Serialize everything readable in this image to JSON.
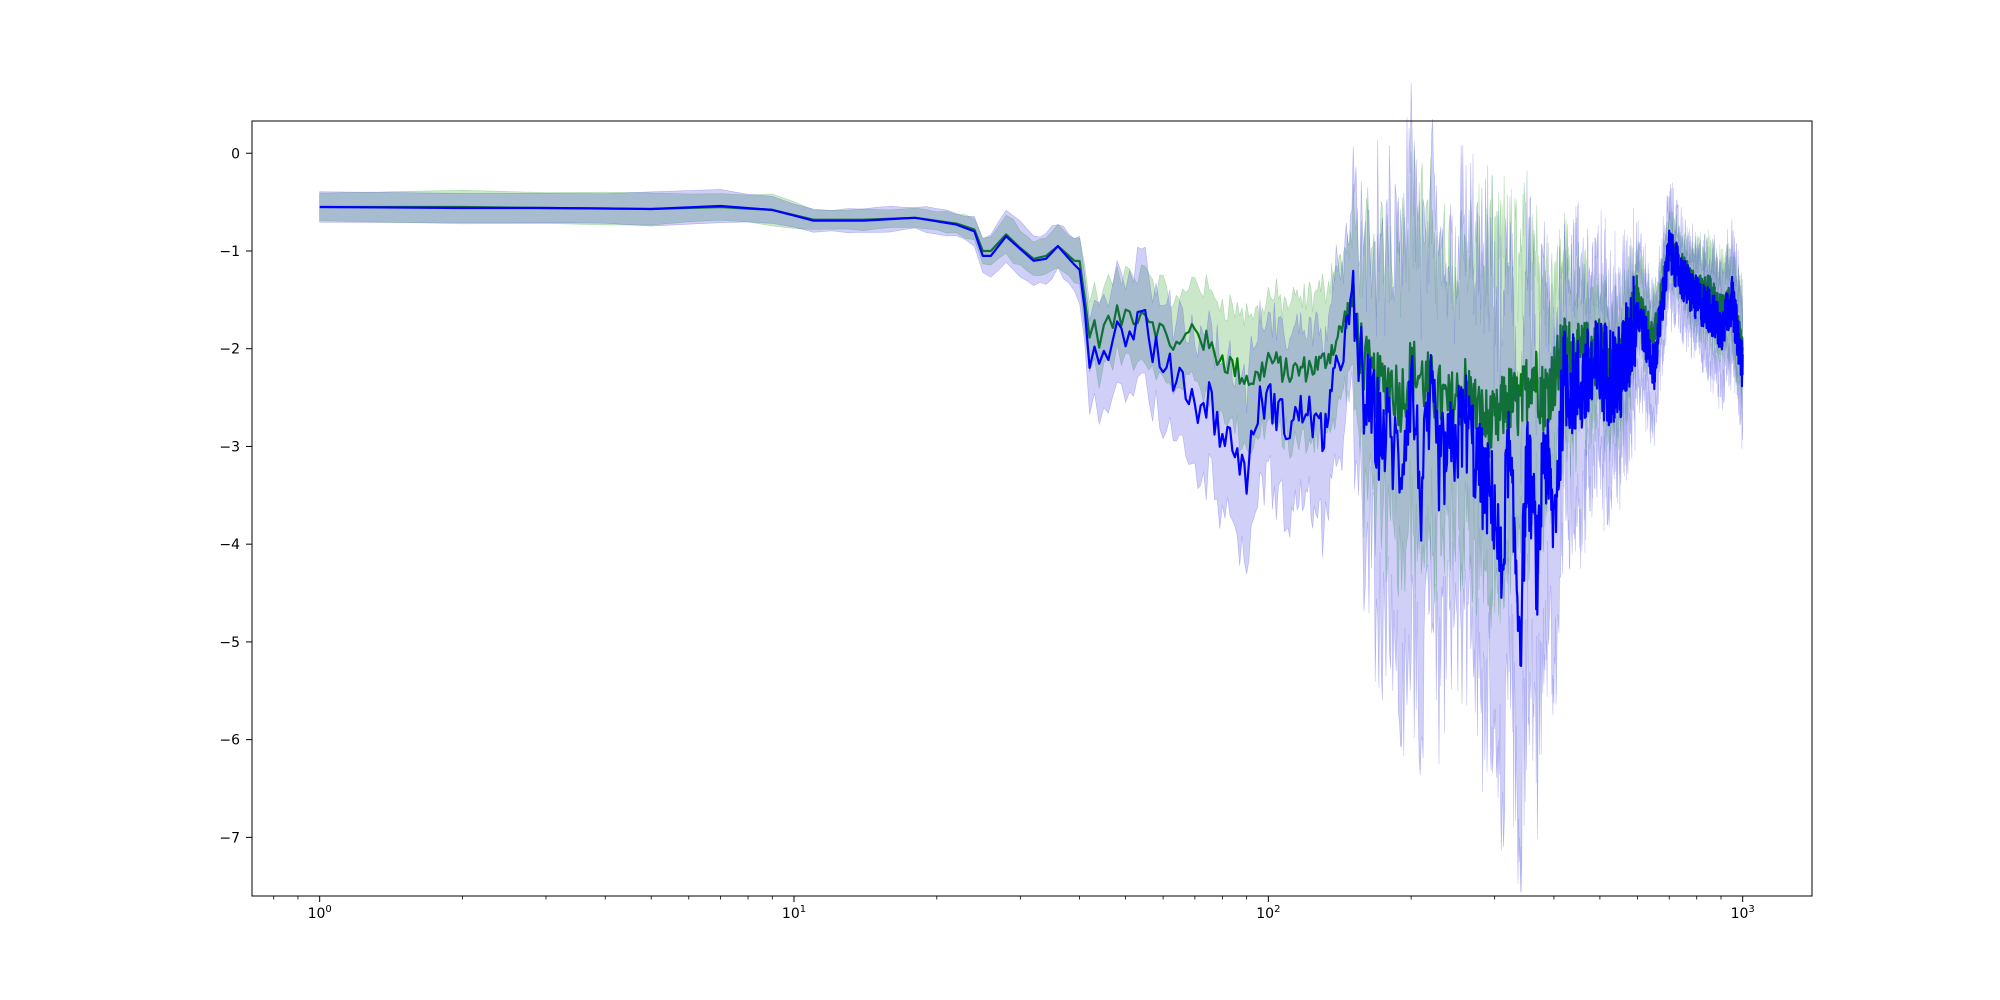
{
  "chart_data": {
    "type": "line",
    "title": "",
    "xlabel": "",
    "ylabel": "",
    "x_scale": "log",
    "xlim": [
      0.72,
      1400
    ],
    "ylim": [
      -7.6,
      0.33
    ],
    "grid": false,
    "legend": "none",
    "x_tick_labels": [
      {
        "value": 1,
        "base": "10",
        "exp": "0"
      },
      {
        "value": 10,
        "base": "10",
        "exp": "1"
      },
      {
        "value": 100,
        "base": "10",
        "exp": "2"
      },
      {
        "value": 1000,
        "base": "10",
        "exp": "3"
      }
    ],
    "y_ticks": [
      0,
      -1,
      -2,
      -3,
      -4,
      -5,
      -6,
      -7
    ],
    "y_tick_labels": [
      "0",
      "−1",
      "−2",
      "−3",
      "−4",
      "−5",
      "−6",
      "−7"
    ],
    "series": [
      {
        "color": "#008000",
        "band_color": "#2ca02c",
        "x": [
          1,
          2,
          3,
          5,
          7,
          9,
          11,
          14,
          18,
          22,
          24,
          25,
          26,
          28,
          30,
          32,
          34,
          36,
          38,
          40,
          42,
          44,
          46,
          50,
          55,
          60,
          65,
          70,
          75,
          80,
          85,
          90,
          95,
          100,
          110,
          120,
          130,
          140,
          150,
          160,
          170,
          180,
          190,
          200,
          220,
          240,
          260,
          280,
          300,
          320,
          340,
          360,
          380,
          400,
          420,
          450,
          500,
          550,
          600,
          650,
          700,
          750,
          800,
          850,
          900,
          950,
          1000
        ],
        "y": [
          -0.55,
          -0.55,
          -0.56,
          -0.57,
          -0.55,
          -0.58,
          -0.68,
          -0.68,
          -0.66,
          -0.72,
          -0.78,
          -1.0,
          -1.0,
          -0.83,
          -0.97,
          -1.08,
          -1.05,
          -0.95,
          -1.05,
          -1.15,
          -1.8,
          -1.85,
          -1.75,
          -1.65,
          -1.6,
          -1.85,
          -2.0,
          -1.75,
          -2.0,
          -2.1,
          -2.2,
          -2.3,
          -2.3,
          -2.1,
          -2.25,
          -2.2,
          -2.15,
          -1.9,
          -1.5,
          -2.2,
          -2.4,
          -2.3,
          -2.5,
          -2.2,
          -2.4,
          -2.6,
          -2.4,
          -2.7,
          -2.8,
          -2.5,
          -2.6,
          -2.2,
          -2.5,
          -2.3,
          -2.0,
          -2.1,
          -2.0,
          -2.3,
          -1.5,
          -1.9,
          -1.0,
          -1.2,
          -1.4,
          -1.4,
          -1.6,
          -1.5,
          -2.0
        ],
        "band_half_width": [
          0.15,
          0.15,
          0.15,
          0.15,
          0.15,
          0.15,
          0.1,
          0.1,
          0.1,
          0.1,
          0.12,
          0.15,
          0.15,
          0.2,
          0.2,
          0.2,
          0.2,
          0.2,
          0.2,
          0.25,
          0.35,
          0.4,
          0.4,
          0.4,
          0.45,
          0.45,
          0.45,
          0.5,
          0.55,
          0.6,
          0.6,
          0.65,
          0.65,
          0.65,
          0.7,
          0.7,
          0.75,
          0.75,
          0.6,
          0.9,
          1.0,
          1.1,
          1.2,
          1.3,
          1.2,
          1.1,
          1.1,
          1.2,
          1.3,
          1.2,
          1.2,
          1.1,
          0.9,
          0.8,
          0.7,
          0.5,
          0.4,
          0.4,
          0.3,
          0.25,
          0.2,
          0.2,
          0.25,
          0.3,
          0.3,
          0.3,
          0.35
        ]
      },
      {
        "color": "#0000ff",
        "band_color": "#4040e0",
        "x": [
          1,
          2,
          3,
          5,
          7,
          9,
          11,
          14,
          18,
          22,
          24,
          25,
          26,
          28,
          30,
          32,
          34,
          36,
          38,
          40,
          42,
          44,
          46,
          50,
          55,
          60,
          65,
          70,
          75,
          80,
          85,
          90,
          95,
          100,
          110,
          120,
          130,
          140,
          150,
          160,
          170,
          180,
          190,
          200,
          210,
          220,
          230,
          240,
          260,
          280,
          300,
          310,
          320,
          340,
          350,
          360,
          370,
          380,
          400,
          420,
          450,
          500,
          550,
          600,
          650,
          700,
          750,
          800,
          850,
          900,
          950,
          1000
        ],
        "y": [
          -0.55,
          -0.56,
          -0.56,
          -0.57,
          -0.54,
          -0.58,
          -0.69,
          -0.69,
          -0.66,
          -0.73,
          -0.8,
          -1.05,
          -1.05,
          -0.85,
          -0.98,
          -1.1,
          -1.08,
          -0.95,
          -1.08,
          -1.2,
          -2.0,
          -2.05,
          -1.9,
          -1.8,
          -1.7,
          -2.3,
          -2.2,
          -2.6,
          -2.5,
          -2.9,
          -3.0,
          -3.3,
          -2.6,
          -2.5,
          -2.8,
          -2.6,
          -2.9,
          -2.2,
          -1.6,
          -2.5,
          -2.8,
          -2.9,
          -3.2,
          -2.3,
          -3.5,
          -2.6,
          -3.2,
          -3.1,
          -2.7,
          -3.3,
          -3.6,
          -4.4,
          -3.0,
          -4.9,
          -3.2,
          -3.5,
          -4.4,
          -2.9,
          -3.8,
          -2.3,
          -2.4,
          -2.2,
          -2.3,
          -1.6,
          -2.2,
          -1.0,
          -1.3,
          -1.5,
          -1.6,
          -1.8,
          -1.5,
          -2.2
        ],
        "band_half_width": [
          0.17,
          0.17,
          0.17,
          0.17,
          0.17,
          0.15,
          0.12,
          0.12,
          0.12,
          0.12,
          0.15,
          0.2,
          0.2,
          0.25,
          0.25,
          0.25,
          0.25,
          0.25,
          0.25,
          0.3,
          0.5,
          0.55,
          0.55,
          0.55,
          0.6,
          0.6,
          0.6,
          0.7,
          0.75,
          0.8,
          0.8,
          0.9,
          0.8,
          0.8,
          0.9,
          0.9,
          1.0,
          1.0,
          0.8,
          1.2,
          1.4,
          1.5,
          1.6,
          1.8,
          1.7,
          1.6,
          1.6,
          1.5,
          1.5,
          1.6,
          1.7,
          1.8,
          1.6,
          1.7,
          1.6,
          1.5,
          1.4,
          1.3,
          1.2,
          1.0,
          0.9,
          0.7,
          0.6,
          0.5,
          0.4,
          0.35,
          0.3,
          0.3,
          0.35,
          0.4,
          0.4,
          0.45
        ]
      }
    ]
  }
}
